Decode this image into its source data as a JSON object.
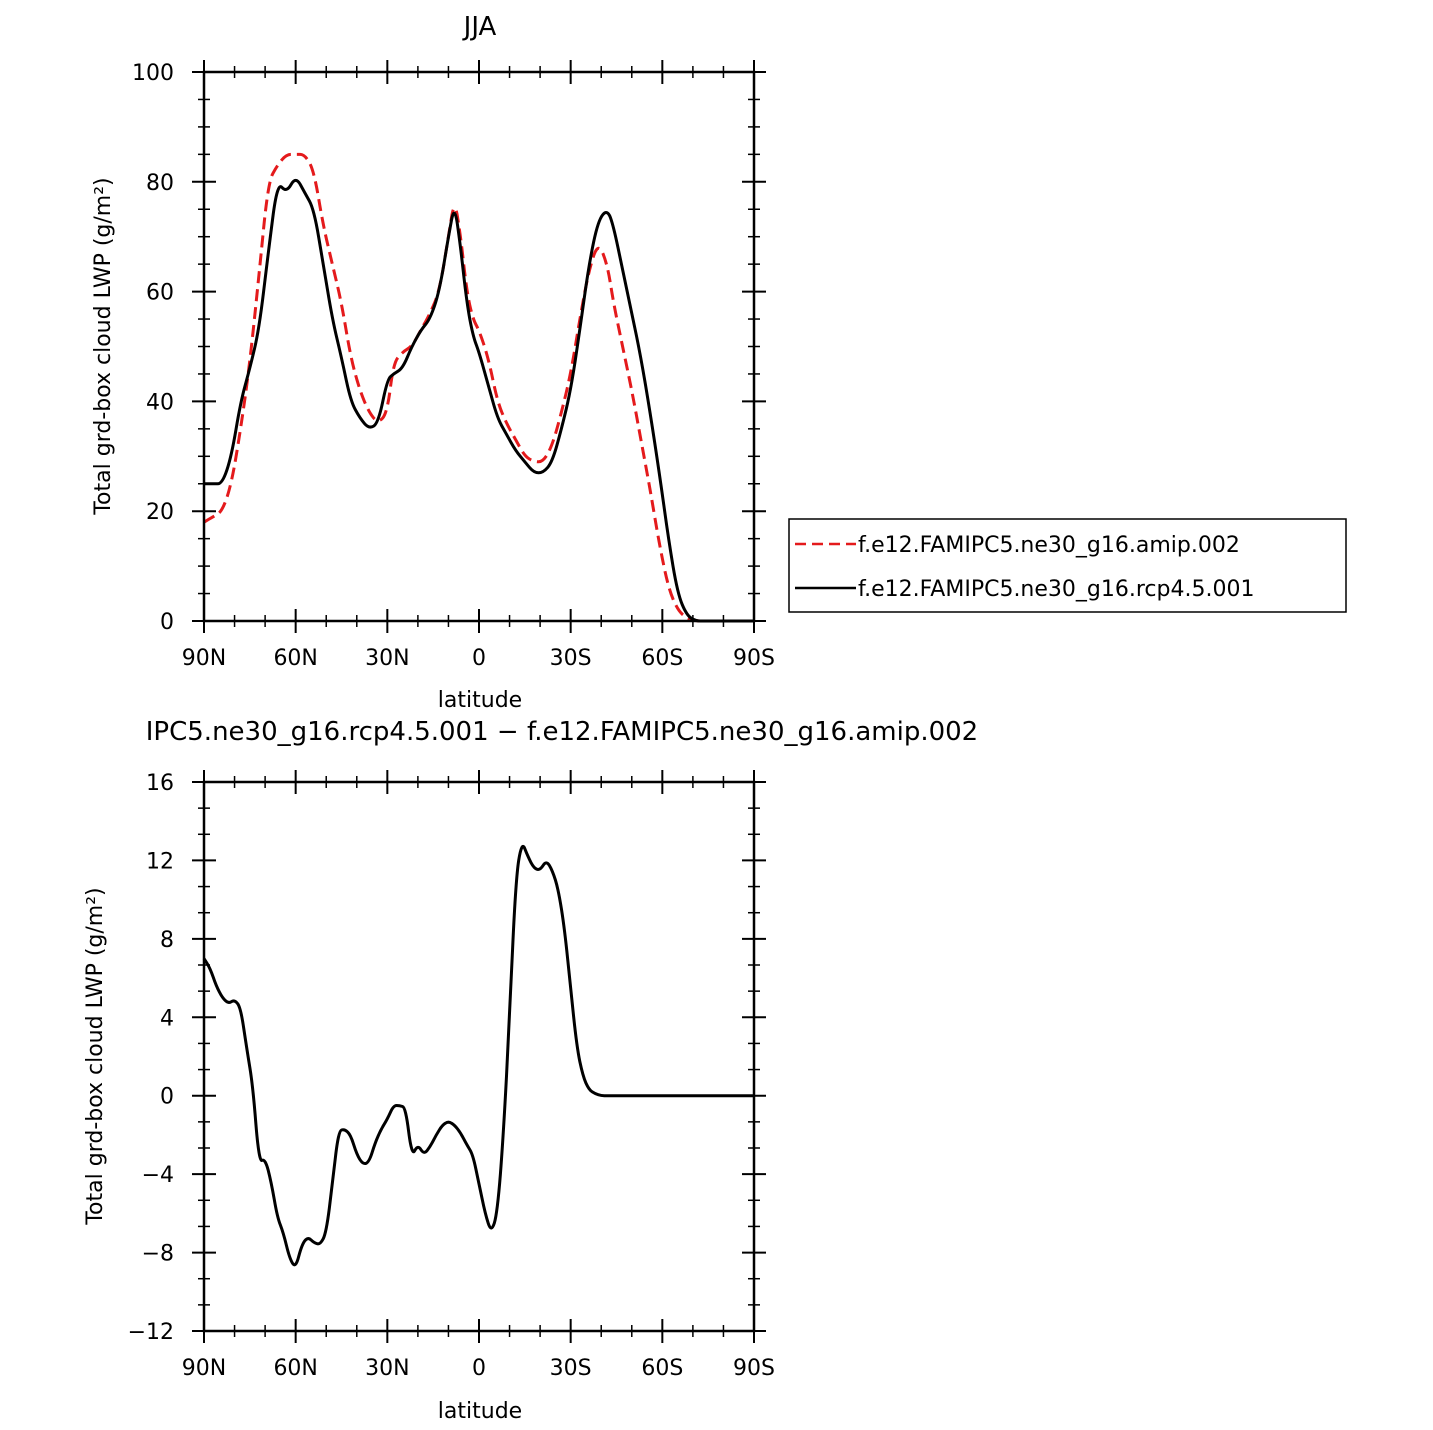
{
  "chart_data": [
    {
      "type": "line",
      "title": "JJA",
      "xlabel": "latitude",
      "ylabel": "Total grd-box cloud LWP (g/m²)",
      "xlim": [
        90,
        -90
      ],
      "ylim": [
        0,
        100
      ],
      "xticks": [
        90,
        60,
        30,
        0,
        -30,
        -60,
        -90
      ],
      "xtick_labels": [
        "90N",
        "60N",
        "30N",
        "0",
        "30S",
        "60S",
        "90S"
      ],
      "yticks": [
        0,
        20,
        40,
        60,
        80,
        100
      ],
      "ytick_labels": [
        "0",
        "20",
        "40",
        "60",
        "80",
        "100"
      ],
      "legend_position": "right",
      "series": [
        {
          "name": "f.e12.FAMIPC5.ne30_g16.amip.002",
          "color": "#e41a1c",
          "dash": "dashed",
          "x": [
            90,
            87,
            84,
            81,
            78,
            75,
            72,
            69,
            66,
            63,
            60,
            57,
            54,
            51,
            48,
            45,
            42,
            39,
            36,
            33,
            30,
            28,
            25,
            22,
            19,
            16,
            13,
            10,
            8,
            6,
            4,
            2,
            0,
            -3,
            -6,
            -9,
            -12,
            -15,
            -18,
            -21,
            -24,
            -27,
            -30,
            -33,
            -36,
            -39,
            -42,
            -44,
            -47,
            -50,
            -53,
            -56,
            -59,
            -62,
            -65,
            -68,
            -71,
            -74,
            -77,
            -80,
            -84,
            -90
          ],
          "y": [
            18,
            19,
            20,
            25,
            35,
            47,
            63,
            80,
            83,
            85,
            85,
            85,
            82,
            72,
            65,
            58,
            48,
            42,
            38,
            36,
            38,
            47,
            49,
            50,
            53,
            56,
            60,
            70,
            77,
            70,
            60,
            55,
            53,
            48,
            40,
            36,
            33,
            30,
            29,
            29,
            32,
            38,
            45,
            55,
            64,
            69,
            65,
            58,
            50,
            42,
            33,
            24,
            14,
            6,
            2,
            0.5,
            0,
            0,
            0,
            0,
            0,
            0
          ]
        },
        {
          "name": "f.e12.FAMIPC5.ne30_g16.rcp4.5.001",
          "color": "#000000",
          "dash": "solid",
          "x": [
            90,
            87,
            84,
            81,
            78,
            75,
            72,
            69,
            66,
            63,
            60,
            57,
            54,
            51,
            48,
            45,
            42,
            39,
            36,
            33,
            30,
            28,
            25,
            22,
            19,
            16,
            13,
            10,
            8,
            6,
            4,
            2,
            0,
            -3,
            -6,
            -9,
            -12,
            -15,
            -18,
            -21,
            -24,
            -27,
            -30,
            -33,
            -36,
            -39,
            -42,
            -44,
            -47,
            -50,
            -53,
            -56,
            -59,
            -62,
            -65,
            -68,
            -71,
            -74,
            -77,
            -80,
            -84,
            -90
          ],
          "y": [
            25,
            25,
            25,
            30,
            40,
            46,
            53,
            67,
            80,
            78,
            81,
            78,
            75,
            65,
            55,
            48,
            40,
            37,
            35,
            36,
            44,
            45,
            46,
            50,
            53,
            55,
            60,
            70,
            76,
            68,
            58,
            52,
            49,
            43,
            37,
            34,
            31,
            29,
            27,
            27,
            29,
            35,
            42,
            53,
            65,
            73,
            75,
            72,
            64,
            56,
            48,
            38,
            27,
            15,
            5,
            1,
            0,
            0,
            0,
            0,
            0,
            0
          ]
        }
      ]
    },
    {
      "type": "line",
      "title": "IPC5.ne30_g16.rcp4.5.001 − f.e12.FAMIPC5.ne30_g16.amip.002",
      "xlabel": "latitude",
      "ylabel": "Total grd-box cloud LWP (g/m²)",
      "xlim": [
        90,
        -90
      ],
      "ylim": [
        -12,
        16
      ],
      "xticks": [
        90,
        60,
        30,
        0,
        -30,
        -60,
        -90
      ],
      "xtick_labels": [
        "90N",
        "60N",
        "30N",
        "0",
        "30S",
        "60S",
        "90S"
      ],
      "yticks": [
        -12,
        -8,
        -4,
        0,
        4,
        8,
        12,
        16
      ],
      "ytick_labels": [
        "−12",
        "−8",
        "−4",
        "0",
        "4",
        "8",
        "12",
        "16"
      ],
      "series": [
        {
          "color": "#000000",
          "dash": "solid",
          "x": [
            90,
            88,
            86,
            84,
            82,
            80,
            78,
            76,
            74,
            72,
            70,
            68,
            66,
            64,
            62,
            60,
            58,
            56,
            54,
            52,
            50,
            48,
            46,
            44,
            42,
            40,
            38,
            36,
            34,
            32,
            30,
            28,
            26,
            24,
            22,
            20,
            18,
            16,
            14,
            12,
            10,
            8,
            6,
            4,
            2,
            0,
            -2,
            -4,
            -6,
            -8,
            -10,
            -12,
            -14,
            -16,
            -18,
            -20,
            -22,
            -24,
            -26,
            -28,
            -30,
            -32,
            -34,
            -36,
            -38,
            -40,
            -42,
            -44,
            -46,
            -48,
            -50,
            -52,
            -54,
            -56,
            -58,
            -60,
            -62,
            -64,
            -66,
            -68,
            -70,
            -72,
            -75,
            -80,
            -85,
            -90
          ],
          "y": [
            7.0,
            6.5,
            5.6,
            5.0,
            4.7,
            4.9,
            4.5,
            2.4,
            0.5,
            -3.4,
            -3.2,
            -4.4,
            -6.2,
            -7.0,
            -8.3,
            -8.8,
            -7.6,
            -7.2,
            -7.5,
            -7.6,
            -7.0,
            -4.5,
            -1.8,
            -1.7,
            -2.0,
            -3.0,
            -3.5,
            -3.4,
            -2.4,
            -1.7,
            -1.2,
            -0.5,
            -0.5,
            -0.6,
            -3.1,
            -2.5,
            -3.0,
            -2.6,
            -2.0,
            -1.5,
            -1.3,
            -1.5,
            -1.9,
            -2.5,
            -3.0,
            -4.5,
            -6.0,
            -7.0,
            -6.0,
            -2.0,
            4.0,
            11.0,
            13.0,
            12.2,
            11.6,
            11.5,
            12.0,
            11.5,
            10.5,
            8.5,
            5.5,
            2.5,
            1.0,
            0.3,
            0.1,
            0.0,
            0.0,
            0.0,
            0.0,
            0.0,
            0.0,
            0.0,
            0.0,
            0.0,
            0.0,
            0.0,
            0.0,
            0.0,
            0.0,
            0.0,
            0.0,
            0.0,
            0.0,
            0.0,
            0.0,
            0.0
          ]
        }
      ]
    }
  ]
}
